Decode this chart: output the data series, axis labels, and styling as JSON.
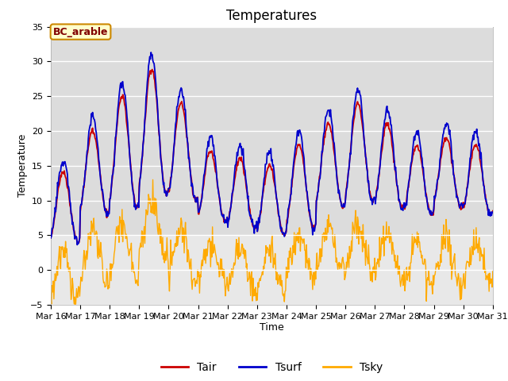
{
  "title": "Temperatures",
  "xlabel": "Time",
  "ylabel": "Temperature",
  "annotation": "BC_arable",
  "ylim": [
    -5,
    35
  ],
  "yticks": [
    -5,
    0,
    5,
    10,
    15,
    20,
    25,
    30,
    35
  ],
  "xtick_labels": [
    "Mar 16",
    "Mar 17",
    "Mar 18",
    "Mar 19",
    "Mar 20",
    "Mar 21",
    "Mar 22",
    "Mar 23",
    "Mar 24",
    "Mar 25",
    "Mar 26",
    "Mar 27",
    "Mar 28",
    "Mar 29",
    "Mar 30",
    "Mar 31"
  ],
  "line_colors": {
    "Tair": "#cc0000",
    "Tsurf": "#0000cc",
    "Tsky": "#ffaa00"
  },
  "legend_labels": [
    "Tair",
    "Tsurf",
    "Tsky"
  ],
  "plot_bg_upper": "#dcdcdc",
  "plot_bg_lower": "#e8e8e8",
  "fig_background": "#ffffff",
  "annotation_bg": "#ffffcc",
  "annotation_border": "#cc8800",
  "annotation_text_color": "#800000",
  "title_fontsize": 12,
  "axis_fontsize": 9,
  "tick_fontsize": 8,
  "legend_fontsize": 10,
  "n_points": 720,
  "days": 15,
  "day_base_tair": [
    9,
    14,
    17,
    20,
    17,
    12,
    11,
    10,
    12,
    15,
    17,
    15,
    13,
    14,
    13
  ],
  "day_amp_tair": [
    5,
    6,
    8,
    9,
    7,
    5,
    5,
    5,
    6,
    6,
    7,
    6,
    5,
    5,
    5
  ],
  "day_base_tsky": [
    -1,
    2,
    3,
    6,
    2,
    1,
    0,
    0,
    2,
    3,
    3,
    2,
    1,
    1,
    1
  ],
  "day_amp_tsky": [
    4,
    4,
    4,
    4,
    4,
    3,
    3,
    3,
    3,
    3,
    3,
    3,
    3,
    3,
    3
  ]
}
